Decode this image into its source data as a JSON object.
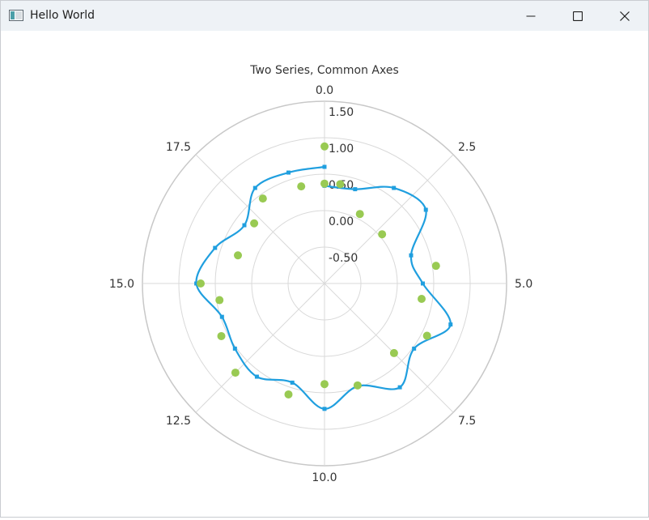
{
  "window": {
    "title": "Hello World",
    "controls": {
      "minimize": "minimize-icon",
      "maximize": "maximize-icon",
      "close": "close-icon"
    }
  },
  "colors": {
    "series1": "#209fdf",
    "series2": "#99ca53",
    "grid": "#d9d9d9",
    "outer_ring": "#c8c8c8",
    "text": "#333333",
    "titlebar": "#eef2f6"
  },
  "chart_data": {
    "type": "polar",
    "title": "Two Series, Common Axes",
    "angular": {
      "range": [
        0,
        20
      ],
      "ticks": [
        0,
        2.5,
        5,
        7.5,
        10,
        12.5,
        15,
        17.5
      ],
      "tick_labels": [
        "0.0",
        "2.5",
        "5.0",
        "7.5",
        "10.0",
        "12.5",
        "15.0",
        "17.5"
      ]
    },
    "radial": {
      "range": [
        -1,
        1.5
      ],
      "ticks": [
        -0.5,
        0,
        0.5,
        1.0,
        1.5
      ],
      "tick_labels": [
        "-0.50",
        "0.00",
        "0.50",
        "1.00",
        "1.50"
      ]
    },
    "series": [
      {
        "type": "spline",
        "points": [
          [
            0,
            0.34
          ],
          [
            1,
            0.36
          ],
          [
            2,
            0.62
          ],
          [
            3,
            0.72
          ],
          [
            4,
            0.25
          ],
          [
            5,
            0.35
          ],
          [
            6,
            0.82
          ],
          [
            7,
            0.52
          ],
          [
            8,
            0.76
          ],
          [
            9,
            0.48
          ],
          [
            10,
            0.72
          ],
          [
            11,
            0.43
          ],
          [
            12,
            0.58
          ],
          [
            13,
            0.52
          ],
          [
            14,
            0.48
          ],
          [
            15,
            0.76
          ],
          [
            16,
            0.58
          ],
          [
            17,
            0.36
          ],
          [
            18,
            0.62
          ],
          [
            19,
            0.6
          ],
          [
            20,
            0.6
          ]
        ]
      },
      {
        "type": "scatter",
        "points": [
          [
            0,
            0.37
          ],
          [
            0.5,
            0.38
          ],
          [
            1.5,
            0.07
          ],
          [
            2.75,
            0.04
          ],
          [
            4.5,
            0.55
          ],
          [
            5.5,
            0.35
          ],
          [
            6.5,
            0.58
          ],
          [
            7.5,
            0.35
          ],
          [
            9,
            0.47
          ],
          [
            10,
            0.38
          ],
          [
            11,
            0.6
          ],
          [
            12.5,
            0.73
          ],
          [
            13.5,
            0.59
          ],
          [
            14.5,
            0.46
          ],
          [
            15,
            0.7
          ],
          [
            16,
            0.25
          ],
          [
            17.25,
            0.27
          ],
          [
            18,
            0.44
          ],
          [
            19.25,
            0.37
          ],
          [
            0.001,
            0.88
          ]
        ]
      }
    ]
  }
}
